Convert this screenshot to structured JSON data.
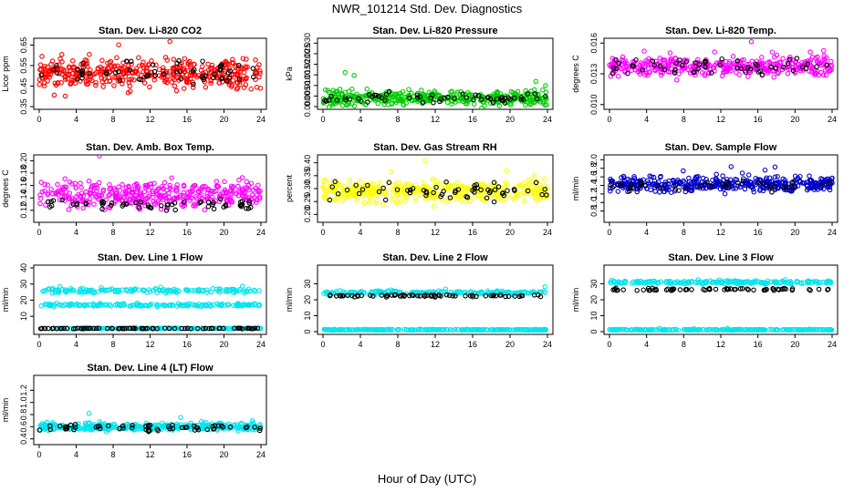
{
  "figure": {
    "title": "NWR_101214 Std. Dev. Diagnostics",
    "xlabel": "Hour of Day (UTC)"
  },
  "colors": {
    "red": "#ff0000",
    "green": "#00cc00",
    "magenta": "#ff00ff",
    "yellow": "#ffff00",
    "blue": "#0000cc",
    "cyan": "#00e5ee",
    "black": "#000000"
  },
  "chart_data": [
    {
      "type": "scatter",
      "title": "Stan. Dev. Li-820 CO2",
      "ylabel": "Licor ppm",
      "xlim": [
        0,
        24
      ],
      "xticks": [
        0,
        4,
        8,
        12,
        16,
        20,
        24
      ],
      "ylim": [
        0.35,
        0.67
      ],
      "yticks": [
        0.35,
        0.45,
        0.55,
        0.65
      ],
      "ytick_labels": [
        "0.35",
        "0.45",
        "0.55",
        "0.65"
      ],
      "color": "red",
      "series": [
        {
          "name": "main",
          "center": 0.51,
          "spread": 0.06,
          "n": 420,
          "seed": 11
        },
        {
          "name": "black",
          "center": 0.52,
          "spread": 0.05,
          "n": 60,
          "seed": 12
        }
      ]
    },
    {
      "type": "scatter",
      "title": "Stan. Dev. Li-820 Pressure",
      "ylabel": "kPa",
      "xlim": [
        0,
        24
      ],
      "xticks": [
        0,
        4,
        8,
        12,
        16,
        20,
        24
      ],
      "ylim": [
        0.0,
        0.031
      ],
      "yticks": [
        0.0,
        0.005,
        0.01,
        0.015,
        0.02,
        0.025,
        0.03
      ],
      "ytick_labels": [
        "0.000",
        "0.005",
        "0.010",
        "0.015",
        "0.020",
        "0.025",
        "0.030"
      ],
      "color": "green",
      "series": [
        {
          "name": "main",
          "center": 0.004,
          "spread": 0.003,
          "n": 420,
          "seed": 21
        },
        {
          "name": "black",
          "center": 0.004,
          "spread": 0.002,
          "n": 60,
          "seed": 22
        }
      ]
    },
    {
      "type": "scatter",
      "title": "Stan. Dev. Li-820 Temp.",
      "ylabel": "degrees C",
      "xlim": [
        0,
        24
      ],
      "xticks": [
        0,
        4,
        8,
        12,
        16,
        20,
        24
      ],
      "ylim": [
        0.0098,
        0.0162
      ],
      "yticks": [
        0.01,
        0.013,
        0.016
      ],
      "ytick_labels": [
        "0.010",
        "0.013",
        "0.016"
      ],
      "color": "magenta",
      "series": [
        {
          "name": "main",
          "center": 0.0137,
          "spread": 0.0008,
          "n": 380,
          "seed": 31
        },
        {
          "name": "black",
          "center": 0.0138,
          "spread": 0.0006,
          "n": 55,
          "seed": 32
        }
      ]
    },
    {
      "type": "scatter",
      "title": "Stan. Dev. Amb. Box Temp.",
      "ylabel": "degrees C",
      "xlim": [
        0,
        24
      ],
      "xticks": [
        0,
        4,
        8,
        12,
        16,
        20,
        24
      ],
      "ylim": [
        0.105,
        0.205
      ],
      "yticks": [
        0.12,
        0.14,
        0.16,
        0.18,
        0.2
      ],
      "ytick_labels": [
        "0.12",
        "0.14",
        "0.16",
        "0.18",
        "0.20"
      ],
      "color": "magenta",
      "series": [
        {
          "name": "main",
          "center": 0.145,
          "spread": 0.018,
          "n": 380,
          "seed": 41
        },
        {
          "name": "black",
          "center": 0.13,
          "spread": 0.008,
          "n": 60,
          "seed": 42
        }
      ]
    },
    {
      "type": "scatter",
      "title": "Stan. Dev. Gas Stream RH",
      "ylabel": "percent",
      "xlim": [
        0,
        24
      ],
      "xticks": [
        0,
        4,
        8,
        12,
        16,
        20,
        24
      ],
      "ylim": [
        0.18,
        0.42
      ],
      "yticks": [
        0.2,
        0.25,
        0.3,
        0.35,
        0.4
      ],
      "ytick_labels": [
        "0.20",
        "0.25",
        "0.30",
        "0.35",
        "0.40"
      ],
      "color": "yellow",
      "series": [
        {
          "name": "main",
          "center": 0.29,
          "spread": 0.035,
          "n": 380,
          "seed": 51
        },
        {
          "name": "black",
          "center": 0.29,
          "spread": 0.03,
          "n": 60,
          "seed": 52
        }
      ]
    },
    {
      "type": "scatter",
      "title": "Stan. Dev. Sample Flow",
      "ylabel": "ml/min",
      "xlim": [
        0,
        24
      ],
      "xticks": [
        0,
        4,
        8,
        12,
        16,
        20,
        24
      ],
      "ylim": [
        0.6,
        2.05
      ],
      "yticks": [
        0.8,
        1.0,
        1.2,
        1.4,
        1.6,
        1.8,
        2.0
      ],
      "ytick_labels": [
        "0.8",
        "1.0",
        "1.2",
        "1.4",
        "1.6",
        "1.8",
        "2.0"
      ],
      "color": "blue",
      "series": [
        {
          "name": "main",
          "center": 1.42,
          "spread": 0.15,
          "n": 420,
          "seed": 61
        },
        {
          "name": "black",
          "center": 1.38,
          "spread": 0.1,
          "n": 40,
          "seed": 62
        }
      ]
    },
    {
      "type": "scatter",
      "title": "Stan. Dev. Line 1 Flow",
      "ylabel": "ml/min",
      "xlim": [
        0,
        24
      ],
      "xticks": [
        0,
        4,
        8,
        12,
        16,
        20,
        24
      ],
      "ylim": [
        0.5,
        40
      ],
      "yticks": [
        10,
        20,
        30,
        40
      ],
      "ytick_labels": [
        "10",
        "20",
        "30",
        "40"
      ],
      "color": "cyan",
      "series": [
        {
          "name": "band-high",
          "center": 26,
          "spread": 1.2,
          "n": 160,
          "seed": 71
        },
        {
          "name": "band-mid",
          "center": 17,
          "spread": 0.8,
          "n": 160,
          "seed": 72
        },
        {
          "name": "band-low",
          "center": 2.5,
          "spread": 0.2,
          "n": 200,
          "seed": 73
        },
        {
          "name": "black",
          "center": 2.5,
          "spread": 0.2,
          "n": 80,
          "seed": 74
        }
      ]
    },
    {
      "type": "scatter",
      "title": "Stan. Dev. Line 2 Flow",
      "ylabel": "ml/min",
      "xlim": [
        0,
        24
      ],
      "xticks": [
        0,
        4,
        8,
        12,
        16,
        20,
        24
      ],
      "ylim": [
        0,
        40
      ],
      "yticks": [
        0,
        10,
        20,
        30
      ],
      "ytick_labels": [
        "0",
        "10",
        "20",
        "30"
      ],
      "color": "cyan",
      "series": [
        {
          "name": "band-high",
          "center": 24.5,
          "spread": 1.0,
          "n": 220,
          "seed": 81
        },
        {
          "name": "band-low",
          "center": 1.2,
          "spread": 0.2,
          "n": 260,
          "seed": 82
        },
        {
          "name": "black",
          "center": 22.5,
          "spread": 0.6,
          "n": 70,
          "seed": 83
        }
      ]
    },
    {
      "type": "scatter",
      "title": "Stan. Dev. Line 3 Flow",
      "ylabel": "ml/min",
      "xlim": [
        0,
        24
      ],
      "xticks": [
        0,
        4,
        8,
        12,
        16,
        20,
        24
      ],
      "ylim": [
        0,
        40
      ],
      "yticks": [
        0,
        10,
        20,
        30
      ],
      "ytick_labels": [
        "0",
        "10",
        "20",
        "30"
      ],
      "color": "cyan",
      "series": [
        {
          "name": "band-high",
          "center": 31,
          "spread": 0.8,
          "n": 220,
          "seed": 91
        },
        {
          "name": "band-low",
          "center": 1.2,
          "spread": 0.2,
          "n": 260,
          "seed": 92
        },
        {
          "name": "black",
          "center": 26.5,
          "spread": 0.6,
          "n": 70,
          "seed": 93
        }
      ]
    },
    {
      "type": "scatter",
      "title": "Stan. Dev. Line 4 (LT) Flow",
      "ylabel": "ml/min",
      "xlim": [
        0,
        24
      ],
      "xticks": [
        0,
        4,
        8,
        12,
        16,
        20,
        24
      ],
      "ylim": [
        0.35,
        1.4
      ],
      "yticks": [
        0.4,
        0.6,
        0.8,
        1.0,
        1.2
      ],
      "ytick_labels": [
        "0.4",
        "0.6",
        "0.8",
        "1.0",
        "1.2"
      ],
      "color": "cyan",
      "series": [
        {
          "name": "main",
          "center": 0.6,
          "spread": 0.05,
          "n": 380,
          "seed": 101
        },
        {
          "name": "black",
          "center": 0.58,
          "spread": 0.05,
          "n": 60,
          "seed": 102
        }
      ]
    }
  ]
}
